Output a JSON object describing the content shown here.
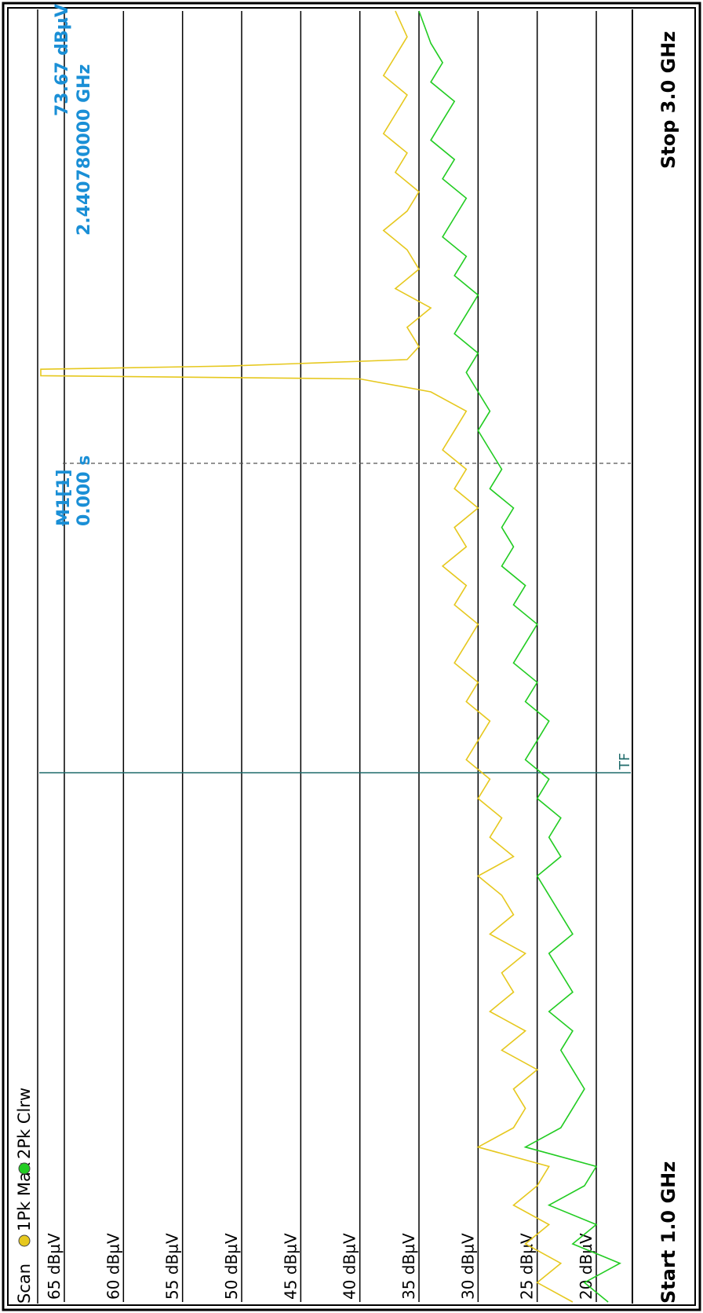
{
  "header": {
    "scan_label": "Scan",
    "trace1_label": "1Pk Max",
    "trace2_label": "2Pk Clrw"
  },
  "marker": {
    "name": "M1[1]",
    "time": "0.000 s",
    "level": "73.67 dBµV",
    "frequency": "2.440780000 GHz",
    "flag_label": "M1"
  },
  "footer": {
    "start_label": "Start 1.0 GHz",
    "stop_label": "Stop 3.0 GHz"
  },
  "threshold_label": "TF",
  "colors": {
    "trace1": "#e6c81e",
    "trace2": "#22cc22",
    "marker": "#1a8fd6",
    "grid": "#000000",
    "threshold": "#1f6b6b",
    "background": "#ffffff"
  },
  "chart_data": {
    "type": "line",
    "x_unit": "GHz",
    "y_unit": "dBµV",
    "xlim": [
      1.0,
      3.0
    ],
    "ylim": [
      16,
      67
    ],
    "y_ticks": [
      65,
      60,
      55,
      50,
      45,
      40,
      35,
      30,
      25,
      20
    ],
    "y_tick_labels": [
      "65 dBµV",
      "60 dBµV",
      "55 dBµV",
      "50 dBµV",
      "45 dBµV",
      "40 dBµV",
      "35 dBµV",
      "30 dBµV",
      "25 dBµV",
      "20 dBµV"
    ],
    "threshold_frequency": 1.82,
    "marker_line_frequency": 1.82,
    "series": [
      {
        "name": "1Pk Max",
        "x": [
          1.0,
          1.03,
          1.06,
          1.09,
          1.12,
          1.15,
          1.18,
          1.21,
          1.24,
          1.27,
          1.3,
          1.33,
          1.36,
          1.39,
          1.42,
          1.45,
          1.48,
          1.51,
          1.54,
          1.57,
          1.6,
          1.63,
          1.66,
          1.69,
          1.72,
          1.75,
          1.78,
          1.81,
          1.84,
          1.87,
          1.9,
          1.93,
          1.96,
          1.99,
          2.02,
          2.05,
          2.08,
          2.11,
          2.14,
          2.17,
          2.2,
          2.23,
          2.26,
          2.29,
          2.32,
          2.35,
          2.38,
          2.41,
          2.43,
          2.435,
          2.44,
          2.445,
          2.45,
          2.46,
          2.48,
          2.51,
          2.54,
          2.57,
          2.6,
          2.63,
          2.66,
          2.69,
          2.72,
          2.75,
          2.78,
          2.81,
          2.84,
          2.87,
          2.9,
          2.93,
          2.96,
          3.0
        ],
        "y": [
          22,
          25,
          23,
          26,
          24,
          27,
          25,
          24,
          30,
          27,
          26,
          27,
          25,
          28,
          26,
          29,
          27,
          28,
          26,
          29,
          27,
          28,
          30,
          27,
          29,
          28,
          30,
          29,
          31,
          30,
          29,
          31,
          30,
          32,
          31,
          30,
          32,
          31,
          33,
          31,
          32,
          30,
          32,
          31,
          33,
          32,
          31,
          34,
          40,
          68,
          73.67,
          69,
          51,
          36,
          35,
          36,
          34,
          37,
          35,
          36,
          38,
          36,
          35,
          37,
          36,
          38,
          37,
          36,
          38,
          37,
          36,
          37
        ]
      },
      {
        "name": "2Pk Clrw",
        "x": [
          1.0,
          1.03,
          1.06,
          1.09,
          1.12,
          1.15,
          1.18,
          1.21,
          1.24,
          1.27,
          1.3,
          1.33,
          1.36,
          1.39,
          1.42,
          1.45,
          1.48,
          1.51,
          1.54,
          1.57,
          1.6,
          1.63,
          1.66,
          1.69,
          1.72,
          1.75,
          1.78,
          1.81,
          1.84,
          1.87,
          1.9,
          1.93,
          1.96,
          1.99,
          2.02,
          2.05,
          2.08,
          2.11,
          2.14,
          2.17,
          2.2,
          2.23,
          2.26,
          2.29,
          2.32,
          2.35,
          2.38,
          2.41,
          2.44,
          2.47,
          2.5,
          2.53,
          2.56,
          2.59,
          2.62,
          2.65,
          2.68,
          2.71,
          2.74,
          2.77,
          2.8,
          2.83,
          2.86,
          2.89,
          2.92,
          2.95,
          3.0
        ],
        "y": [
          19,
          21,
          18,
          22,
          20,
          24,
          21,
          20,
          26,
          23,
          22,
          21,
          22,
          23,
          22,
          24,
          22,
          23,
          24,
          22,
          23,
          24,
          25,
          23,
          24,
          23,
          25,
          24,
          26,
          25,
          24,
          26,
          25,
          27,
          26,
          25,
          27,
          26,
          28,
          27,
          28,
          27,
          29,
          28,
          29,
          30,
          29,
          30,
          31,
          30,
          32,
          31,
          30,
          32,
          31,
          33,
          32,
          31,
          33,
          32,
          34,
          33,
          32,
          34,
          33,
          34,
          35
        ]
      }
    ]
  }
}
